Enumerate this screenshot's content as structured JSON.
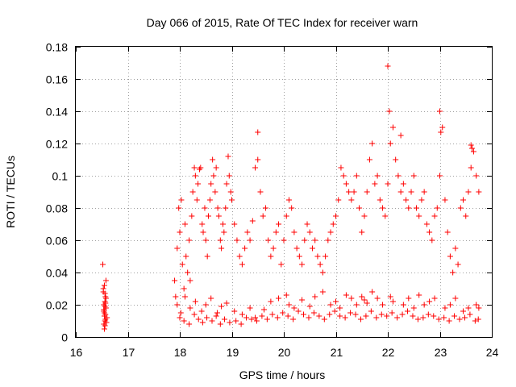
{
  "chart_data": {
    "type": "scatter",
    "title": "Day 066 of 2015, Rate Of TEC Index for receiver warn",
    "xlabel": "GPS time / hours",
    "ylabel": "ROTI / TECUs",
    "xlim": [
      16,
      24
    ],
    "ylim": [
      0,
      0.18
    ],
    "xticks": [
      "16",
      "17",
      "18",
      "19",
      "20",
      "21",
      "22",
      "23",
      "24"
    ],
    "yticks": [
      "0",
      "0.02",
      "0.04",
      "0.06",
      "0.08",
      "0.1",
      "0.12",
      "0.14",
      "0.16",
      "0.18"
    ],
    "grid": true,
    "marker": "+",
    "color": "#ff0000",
    "series": [
      {
        "name": "ROTI",
        "x": [
          16.52,
          16.53,
          16.54,
          16.55,
          16.56,
          16.57,
          16.58,
          16.6,
          16.54,
          16.56,
          16.58,
          16.55,
          16.57,
          16.53,
          16.59,
          16.56,
          16.55,
          16.57,
          16.54,
          16.58,
          16.56,
          16.55,
          16.57,
          16.54,
          16.56,
          17.9,
          17.92,
          17.95,
          17.98,
          18.0,
          18.03,
          18.05,
          18.08,
          18.1,
          18.12,
          18.15,
          18.18,
          18.2,
          18.23,
          18.25,
          18.28,
          18.3,
          18.33,
          18.35,
          18.38,
          18.4,
          18.43,
          18.45,
          18.48,
          18.5,
          18.53,
          18.55,
          18.58,
          18.6,
          18.63,
          18.65,
          18.68,
          18.7,
          18.73,
          18.75,
          18.78,
          18.8,
          18.83,
          18.85,
          18.88,
          18.9,
          18.93,
          18.95,
          18.98,
          19.0,
          19.05,
          19.1,
          19.15,
          19.2,
          19.25,
          19.3,
          19.35,
          19.4,
          19.45,
          19.5,
          19.55,
          19.6,
          19.65,
          19.7,
          19.75,
          19.8,
          19.85,
          19.9,
          19.95,
          20.0,
          20.05,
          20.1,
          20.15,
          20.2,
          20.25,
          20.3,
          20.35,
          20.4,
          20.45,
          20.5,
          20.55,
          20.6,
          20.65,
          20.7,
          20.75,
          20.8,
          20.85,
          20.9,
          20.95,
          21.0,
          21.05,
          21.1,
          21.15,
          21.2,
          21.25,
          21.3,
          21.35,
          21.4,
          21.45,
          21.5,
          21.55,
          21.6,
          21.65,
          21.7,
          21.75,
          21.8,
          21.85,
          21.9,
          21.95,
          22.0,
          22.05,
          22.1,
          22.15,
          22.2,
          22.25,
          22.3,
          22.35,
          22.4,
          22.45,
          22.5,
          22.55,
          22.6,
          22.65,
          22.7,
          22.75,
          22.8,
          22.85,
          22.9,
          22.95,
          23.0,
          23.05,
          23.1,
          23.15,
          23.2,
          23.25,
          23.3,
          23.35,
          23.4,
          23.45,
          23.5,
          23.55,
          23.6,
          23.65,
          23.7,
          23.75,
          17.95,
          18.02,
          18.1,
          18.2,
          18.3,
          18.42,
          18.5,
          18.6,
          18.72,
          18.8,
          18.9,
          19.05,
          19.2,
          19.35,
          19.45,
          19.5,
          19.62,
          19.75,
          19.9,
          20.05,
          20.1,
          20.2,
          20.35,
          20.5,
          20.6,
          20.75,
          20.9,
          21.0,
          21.08,
          21.2,
          21.3,
          21.4,
          21.5,
          21.55,
          21.6,
          21.7,
          21.8,
          21.9,
          22.0,
          22.03,
          22.05,
          22.1,
          22.25,
          22.3,
          22.4,
          22.5,
          22.6,
          22.7,
          22.8,
          22.9,
          23.0,
          23.02,
          23.1,
          23.2,
          23.3,
          23.45,
          23.55,
          23.6,
          23.62,
          23.7,
          23.75,
          18.0,
          18.08,
          18.18,
          18.28,
          18.36,
          18.44,
          18.52,
          18.62,
          18.7,
          18.78,
          18.86,
          18.96,
          19.08,
          19.18,
          19.28,
          19.38,
          19.48,
          19.58,
          19.68,
          19.78,
          19.88,
          19.98,
          20.08,
          20.18,
          20.28,
          20.38,
          20.48,
          20.58,
          20.68,
          20.78,
          20.88,
          20.98,
          21.08,
          21.18,
          21.28,
          21.38,
          21.48,
          21.58,
          21.68,
          21.78,
          21.88,
          21.98,
          22.08,
          22.18,
          22.28,
          22.38,
          22.48,
          22.58,
          22.68,
          22.78,
          22.88,
          22.98,
          23.08,
          23.18,
          23.28,
          23.38,
          23.48,
          23.58,
          23.68,
          23.74
        ],
        "y": [
          0.045,
          0.03,
          0.02,
          0.015,
          0.01,
          0.025,
          0.018,
          0.012,
          0.008,
          0.022,
          0.035,
          0.005,
          0.014,
          0.028,
          0.009,
          0.019,
          0.032,
          0.011,
          0.016,
          0.024,
          0.007,
          0.013,
          0.021,
          0.017,
          0.027,
          0.035,
          0.025,
          0.055,
          0.08,
          0.065,
          0.085,
          0.045,
          0.03,
          0.07,
          0.05,
          0.04,
          0.06,
          0.035,
          0.075,
          0.09,
          0.105,
          0.1,
          0.085,
          0.095,
          0.104,
          0.105,
          0.07,
          0.065,
          0.08,
          0.06,
          0.05,
          0.075,
          0.085,
          0.095,
          0.11,
          0.1,
          0.09,
          0.105,
          0.08,
          0.075,
          0.06,
          0.055,
          0.07,
          0.065,
          0.08,
          0.095,
          0.112,
          0.1,
          0.09,
          0.085,
          0.07,
          0.06,
          0.05,
          0.045,
          0.055,
          0.065,
          0.06,
          0.072,
          0.105,
          0.11,
          0.09,
          0.075,
          0.08,
          0.06,
          0.05,
          0.055,
          0.065,
          0.07,
          0.045,
          0.06,
          0.075,
          0.085,
          0.08,
          0.065,
          0.055,
          0.05,
          0.045,
          0.06,
          0.07,
          0.065,
          0.055,
          0.06,
          0.05,
          0.045,
          0.04,
          0.05,
          0.06,
          0.065,
          0.07,
          0.075,
          0.085,
          0.105,
          0.1,
          0.095,
          0.09,
          0.085,
          0.09,
          0.1,
          0.08,
          0.065,
          0.075,
          0.09,
          0.11,
          0.12,
          0.095,
          0.1,
          0.085,
          0.08,
          0.075,
          0.095,
          0.12,
          0.13,
          0.11,
          0.1,
          0.09,
          0.095,
          0.085,
          0.08,
          0.09,
          0.1,
          0.08,
          0.075,
          0.085,
          0.09,
          0.07,
          0.065,
          0.06,
          0.075,
          0.08,
          0.1,
          0.13,
          0.085,
          0.065,
          0.05,
          0.04,
          0.055,
          0.045,
          0.08,
          0.085,
          0.075,
          0.09,
          0.105,
          0.115,
          0.1,
          0.09,
          0.02,
          0.015,
          0.025,
          0.018,
          0.022,
          0.016,
          0.02,
          0.024,
          0.015,
          0.019,
          0.021,
          0.016,
          0.014,
          0.018,
          0.012,
          0.127,
          0.017,
          0.022,
          0.024,
          0.026,
          0.02,
          0.018,
          0.023,
          0.019,
          0.025,
          0.028,
          0.02,
          0.022,
          0.018,
          0.026,
          0.024,
          0.02,
          0.025,
          0.023,
          0.021,
          0.028,
          0.024,
          0.02,
          0.168,
          0.14,
          0.025,
          0.022,
          0.125,
          0.02,
          0.024,
          0.018,
          0.026,
          0.02,
          0.022,
          0.024,
          0.14,
          0.127,
          0.018,
          0.02,
          0.024,
          0.016,
          0.018,
          0.119,
          0.117,
          0.02,
          0.018,
          0.012,
          0.01,
          0.008,
          0.014,
          0.011,
          0.009,
          0.012,
          0.01,
          0.013,
          0.008,
          0.011,
          0.009,
          0.01,
          0.008,
          0.012,
          0.011,
          0.01,
          0.013,
          0.011,
          0.014,
          0.012,
          0.015,
          0.013,
          0.011,
          0.016,
          0.014,
          0.012,
          0.015,
          0.013,
          0.011,
          0.014,
          0.016,
          0.013,
          0.012,
          0.015,
          0.014,
          0.011,
          0.013,
          0.016,
          0.012,
          0.014,
          0.013,
          0.015,
          0.012,
          0.014,
          0.016,
          0.013,
          0.011,
          0.012,
          0.014,
          0.013,
          0.011,
          0.012,
          0.01,
          0.013,
          0.011,
          0.012,
          0.014,
          0.01,
          0.011
        ]
      }
    ]
  }
}
